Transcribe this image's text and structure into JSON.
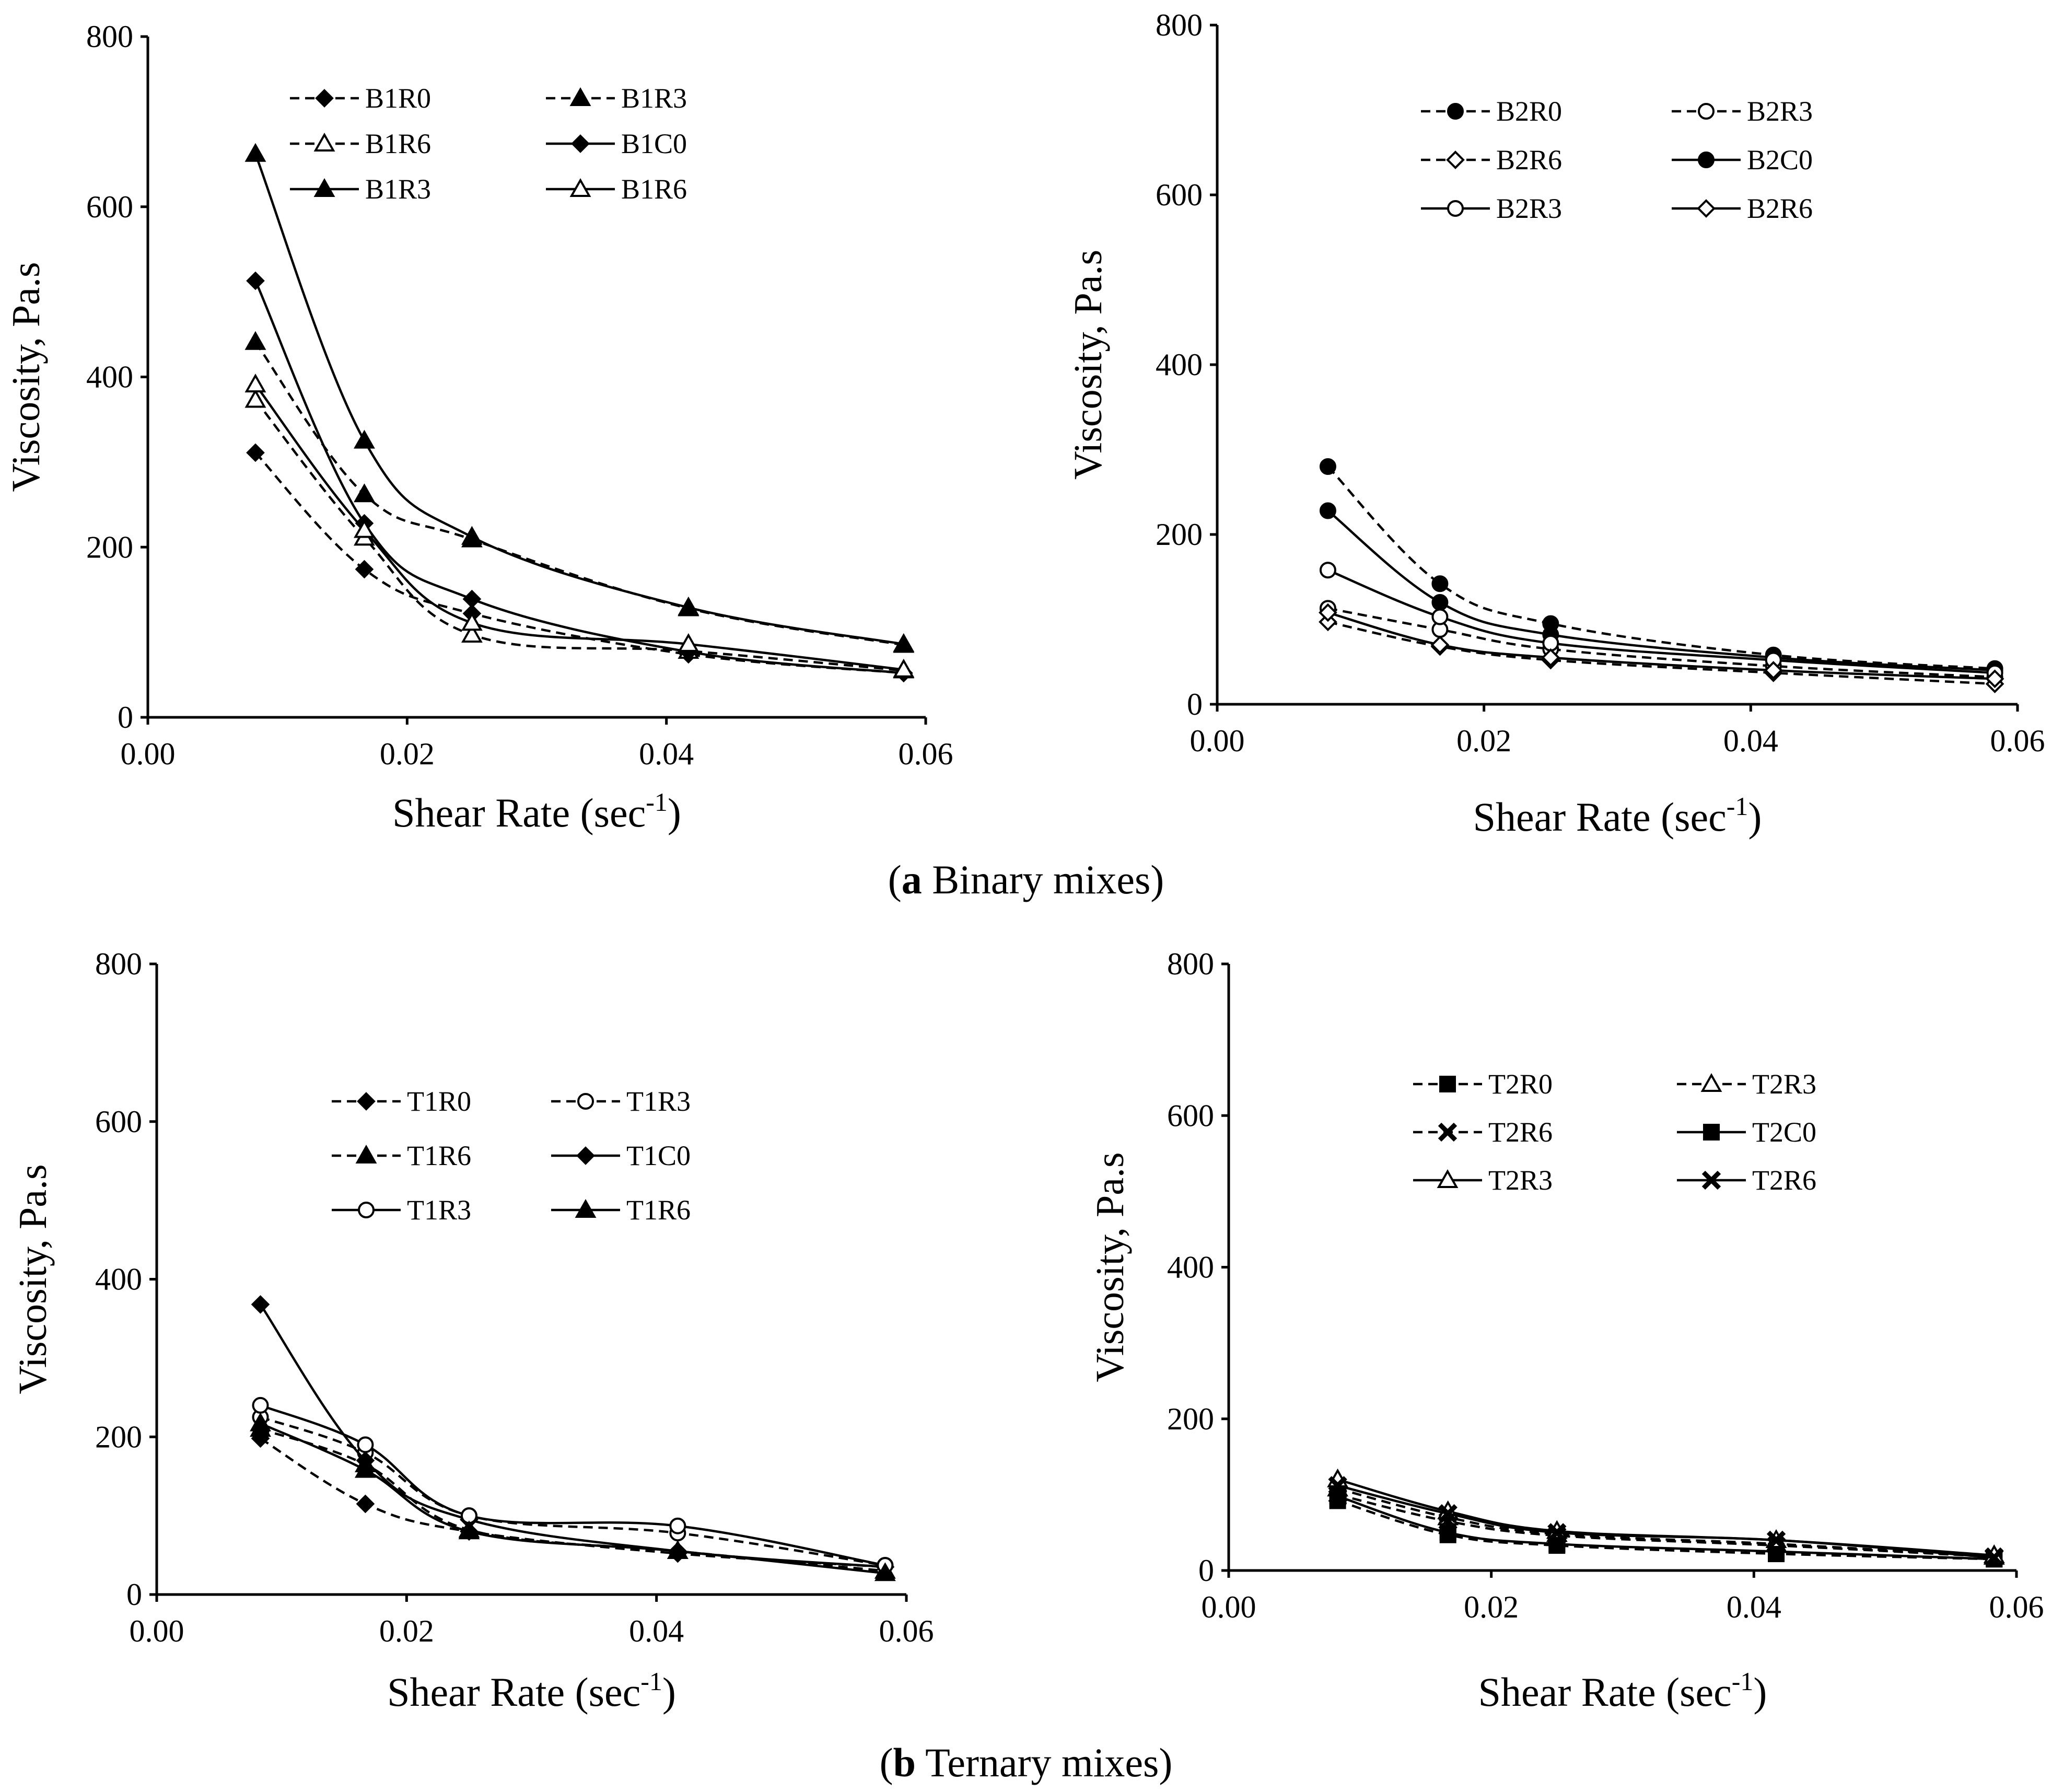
{
  "captions": [
    {
      "label": "a",
      "text": " Binary mixes"
    },
    {
      "label": "b",
      "text": " Ternary mixes"
    }
  ],
  "chart_data": [
    {
      "type": "line",
      "xlabel": "Shear Rate (sec",
      "xlabel_sup": "-1",
      "xlabel_close": ")",
      "ylabel": "Viscosity, Pa.s",
      "xlim": [
        0,
        0.06
      ],
      "ylim": [
        0,
        800
      ],
      "xticks": [
        "0.00",
        "0.02",
        "0.04",
        "0.06"
      ],
      "yticks": [
        "0",
        "200",
        "400",
        "600",
        "800"
      ],
      "grid": false,
      "legend_position": "top-right",
      "x": [
        0.0083,
        0.0167,
        0.025,
        0.0417,
        0.0583
      ],
      "series": [
        {
          "name": "B1R0",
          "style": "dashed",
          "marker": "diamond-filled",
          "values": [
            311,
            174,
            122,
            74,
            52
          ]
        },
        {
          "name": "B1R3",
          "style": "dashed",
          "marker": "triangle-filled",
          "values": [
            441,
            262,
            209,
            128,
            85
          ]
        },
        {
          "name": "B1R6",
          "style": "dashed",
          "marker": "triangle-open",
          "values": [
            373,
            211,
            97,
            78,
            55
          ]
        },
        {
          "name": "B1C0",
          "style": "solid",
          "marker": "diamond-filled",
          "values": [
            513,
            228,
            139,
            77,
            52
          ]
        },
        {
          "name": "B1R3",
          "style": "solid",
          "marker": "triangle-filled",
          "values": [
            662,
            325,
            212,
            129,
            86
          ]
        },
        {
          "name": "B1R6",
          "style": "solid",
          "marker": "triangle-open",
          "values": [
            391,
            220,
            111,
            86,
            56
          ]
        }
      ]
    },
    {
      "type": "line",
      "xlabel": "Shear Rate (sec",
      "xlabel_sup": "-1",
      "xlabel_close": ")",
      "ylabel": "Viscosity,  Pa.s",
      "xlim": [
        0,
        0.06
      ],
      "ylim": [
        0,
        800
      ],
      "xticks": [
        "0.00",
        "0.02",
        "0.04",
        "0.06"
      ],
      "yticks": [
        "0",
        "200",
        "400",
        "600",
        "800"
      ],
      "grid": false,
      "legend_position": "top-right",
      "x": [
        0.0083,
        0.0167,
        0.025,
        0.0417,
        0.0583
      ],
      "series": [
        {
          "name": "B2R0",
          "style": "dashed",
          "marker": "circle-filled",
          "values": [
            280,
            142,
            95,
            58,
            42
          ]
        },
        {
          "name": "B2R3",
          "style": "dashed",
          "marker": "circle-open",
          "values": [
            113,
            88,
            65,
            45,
            32
          ]
        },
        {
          "name": "B2R6",
          "style": "dashed",
          "marker": "diamond-open",
          "values": [
            97,
            68,
            52,
            37,
            24
          ]
        },
        {
          "name": "B2C0",
          "style": "solid",
          "marker": "circle-filled",
          "values": [
            228,
            120,
            82,
            55,
            40
          ]
        },
        {
          "name": "B2R3",
          "style": "solid",
          "marker": "circle-open",
          "values": [
            158,
            103,
            72,
            52,
            37
          ]
        },
        {
          "name": "B2R6",
          "style": "solid",
          "marker": "diamond-open",
          "values": [
            108,
            70,
            55,
            40,
            30
          ]
        }
      ]
    },
    {
      "type": "line",
      "xlabel": "Shear Rate (sec",
      "xlabel_sup": "-1",
      "xlabel_close": ")",
      "ylabel": "Viscosity, Pa.s",
      "xlim": [
        0,
        0.06
      ],
      "ylim": [
        0,
        800
      ],
      "xticks": [
        "0.00",
        "0.02",
        "0.04",
        "0.06"
      ],
      "yticks": [
        "0",
        "200",
        "400",
        "600",
        "800"
      ],
      "grid": false,
      "legend_position": "top-right",
      "x": [
        0.0083,
        0.0167,
        0.025,
        0.0417,
        0.0583
      ],
      "series": [
        {
          "name": "T1R0",
          "style": "dashed",
          "marker": "diamond-filled",
          "values": [
            198,
            115,
            80,
            52,
            35
          ]
        },
        {
          "name": "T1R3",
          "style": "dashed",
          "marker": "circle-open",
          "values": [
            225,
            180,
            100,
            78,
            37
          ]
        },
        {
          "name": "T1R6",
          "style": "dashed",
          "marker": "triangle-filled",
          "values": [
            210,
            165,
            82,
            55,
            30
          ]
        },
        {
          "name": "T1C0",
          "style": "solid",
          "marker": "diamond-filled",
          "values": [
            368,
            170,
            95,
            55,
            35
          ]
        },
        {
          "name": "T1R3",
          "style": "solid",
          "marker": "circle-open",
          "values": [
            240,
            190,
            100,
            87,
            37
          ]
        },
        {
          "name": "T1R6",
          "style": "solid",
          "marker": "triangle-filled",
          "values": [
            217,
            158,
            80,
            55,
            27
          ]
        }
      ]
    },
    {
      "type": "line",
      "xlabel": "Shear Rate (sec",
      "xlabel_sup": "-1",
      "xlabel_close": ")",
      "ylabel": "Viscosity, Pa.s",
      "xlim": [
        0,
        0.06
      ],
      "ylim": [
        0,
        800
      ],
      "xticks": [
        "0.00",
        "0.02",
        "0.04",
        "0.06"
      ],
      "yticks": [
        "0",
        "200",
        "400",
        "600",
        "800"
      ],
      "grid": false,
      "legend_position": "top-right",
      "x": [
        0.0083,
        0.0167,
        0.025,
        0.0417,
        0.0583
      ],
      "series": [
        {
          "name": "T2R0",
          "style": "dashed",
          "marker": "square-filled",
          "values": [
            92,
            47,
            33,
            22,
            15
          ]
        },
        {
          "name": "T2R3",
          "style": "dashed",
          "marker": "triangle-open",
          "values": [
            108,
            70,
            48,
            35,
            18
          ]
        },
        {
          "name": "T2R6",
          "style": "dashed",
          "marker": "x-cross",
          "values": [
            100,
            65,
            46,
            33,
            18
          ]
        },
        {
          "name": "T2C0",
          "style": "solid",
          "marker": "square-filled",
          "values": [
            98,
            50,
            35,
            25,
            15
          ]
        },
        {
          "name": "T2R3",
          "style": "solid",
          "marker": "triangle-open",
          "values": [
            120,
            78,
            52,
            40,
            20
          ]
        },
        {
          "name": "T2R6",
          "style": "solid",
          "marker": "x-cross",
          "values": [
            112,
            75,
            50,
            40,
            17
          ]
        }
      ]
    }
  ]
}
